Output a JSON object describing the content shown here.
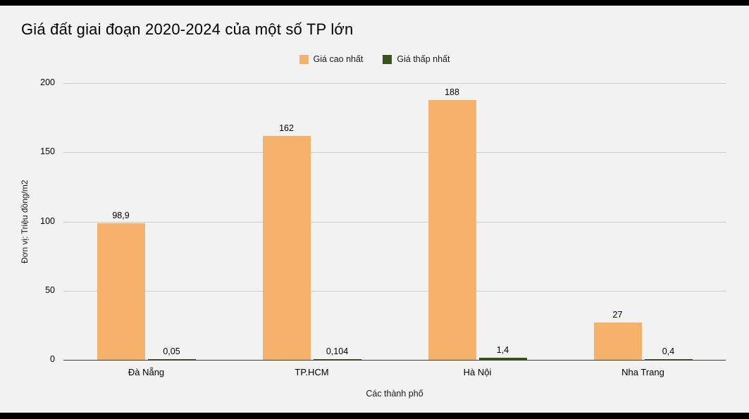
{
  "page": {
    "background": "#f2f2f2",
    "frame_color": "#000000"
  },
  "chart_data": {
    "type": "bar",
    "title": "Giá đất giai đoạn 2020-2024 của một số TP lớn",
    "xlabel": "Các thành phố",
    "ylabel": "Đơn vị: Triệu đồng/m2",
    "categories": [
      "Đà Nẵng",
      "TP.HCM",
      "Hà Nội",
      "Nha Trang"
    ],
    "series": [
      {
        "name": "Giá cao nhất",
        "color": "#f6b26b",
        "values": [
          98.9,
          162,
          188,
          27
        ],
        "labels": [
          "98,9",
          "162",
          "188",
          "27"
        ]
      },
      {
        "name": "Giá thấp nhất",
        "color": "#38541b",
        "values": [
          0.05,
          0.104,
          1.4,
          0.4
        ],
        "labels": [
          "0,05",
          "0,104",
          "1,4",
          "0,4"
        ]
      }
    ],
    "ylim": [
      0,
      200
    ],
    "yticks": [
      0,
      50,
      100,
      150,
      200
    ],
    "grid": "horizontal",
    "legend_position": "top-center"
  }
}
